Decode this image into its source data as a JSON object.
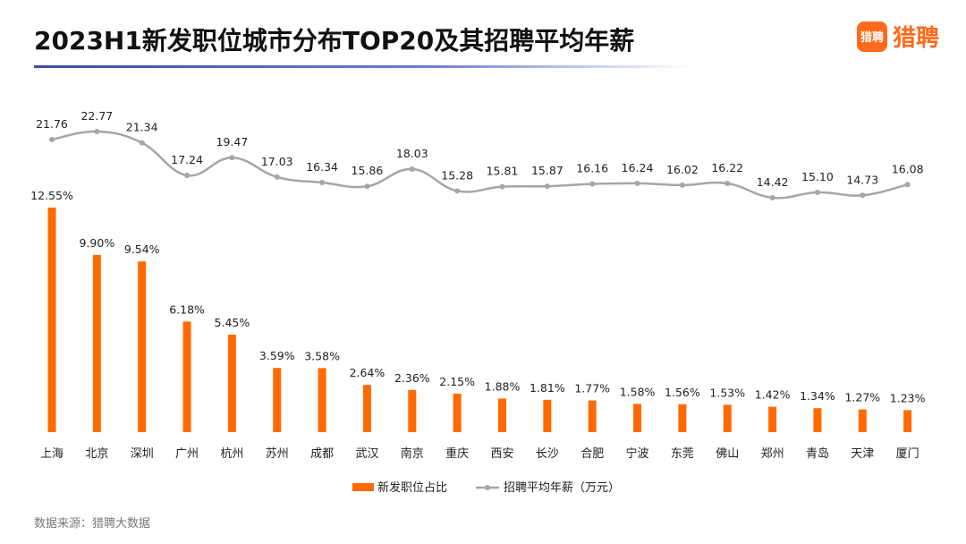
{
  "title": "2023H1新发职位城市分布TOP20及其招聘平均年薪",
  "logo": {
    "badge": "猎聘",
    "text": "猎聘"
  },
  "source": "数据来源：猎聘大数据",
  "colors": {
    "bar": "#ff6a00",
    "line": "#a6a6a6",
    "logo": "#ff6a1a"
  },
  "chart_data": {
    "type": "bar",
    "categories": [
      "上海",
      "北京",
      "深圳",
      "广州",
      "杭州",
      "苏州",
      "成都",
      "武汉",
      "南京",
      "重庆",
      "西安",
      "长沙",
      "合肥",
      "宁波",
      "东莞",
      "佛山",
      "郑州",
      "青岛",
      "天津",
      "厦门"
    ],
    "series": [
      {
        "name": "新发职位占比",
        "type": "bar",
        "values": [
          12.55,
          9.9,
          9.54,
          6.18,
          5.45,
          3.59,
          3.58,
          2.64,
          2.36,
          2.15,
          1.88,
          1.81,
          1.77,
          1.58,
          1.56,
          1.53,
          1.42,
          1.34,
          1.27,
          1.23
        ],
        "labels": [
          "12.55%",
          "9.90%",
          "9.54%",
          "6.18%",
          "5.45%",
          "3.59%",
          "3.58%",
          "2.64%",
          "2.36%",
          "2.15%",
          "1.88%",
          "1.81%",
          "1.77%",
          "1.58%",
          "1.56%",
          "1.53%",
          "1.42%",
          "1.34%",
          "1.27%",
          "1.23%"
        ]
      },
      {
        "name": "招聘平均年薪（万元）",
        "type": "line",
        "values": [
          21.76,
          22.77,
          21.34,
          17.24,
          19.47,
          17.03,
          16.34,
          15.86,
          18.03,
          15.28,
          15.81,
          15.87,
          16.16,
          16.24,
          16.02,
          16.22,
          14.42,
          15.1,
          14.73,
          16.08
        ],
        "labels": [
          "21.76",
          "22.77",
          "21.34",
          "17.24",
          "19.47",
          "17.03",
          "16.34",
          "15.86",
          "18.03",
          "15.28",
          "15.81",
          "15.87",
          "16.16",
          "16.24",
          "16.02",
          "16.22",
          "14.42",
          "15.10",
          "14.73",
          "16.08"
        ]
      }
    ],
    "legend": "bottom-center",
    "grid": false
  }
}
